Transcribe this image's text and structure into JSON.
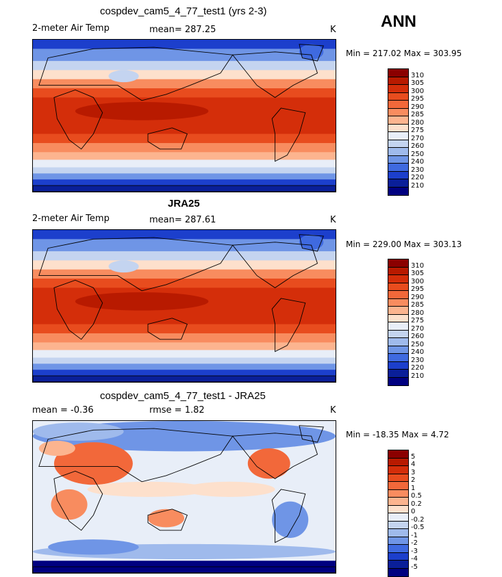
{
  "season": "ANN",
  "panels": [
    {
      "title": "cospdev_cam5_4_77_test1 (yrs 2-3)",
      "left_text": "2-meter Air Temp",
      "center_text": "mean= 287.25",
      "units": "K",
      "minmax": "Min = 217.02 Max = 303.95",
      "field": "abs"
    },
    {
      "title": "JRA25",
      "left_text": "2-meter Air Temp",
      "center_text": "mean= 287.61",
      "units": "K",
      "minmax": "Min = 229.00 Max = 303.13",
      "field": "abs"
    },
    {
      "title": "cospdev_cam5_4_77_test1 - JRA25",
      "left_text": "mean =   -0.36",
      "center_text": "rmse =    1.82",
      "units": "K",
      "minmax": "Min = -18.35 Max =   4.72",
      "field": "diff"
    }
  ],
  "colorbars": {
    "abs": {
      "labels": [
        "310",
        "305",
        "300",
        "295",
        "290",
        "285",
        "280",
        "275",
        "270",
        "260",
        "250",
        "240",
        "230",
        "220",
        "210"
      ],
      "colors": [
        "#8b0000",
        "#b81a00",
        "#d42e0a",
        "#e84c1e",
        "#f2683a",
        "#f88c5f",
        "#fcb48f",
        "#fde0cc",
        "#e8eef8",
        "#c4d4f0",
        "#9fbaec",
        "#6f95e6",
        "#3f6ae0",
        "#1c3fcc",
        "#0a1f99",
        "#000080"
      ]
    },
    "diff": {
      "labels": [
        "5",
        "4",
        "3",
        "2",
        "1",
        "0.5",
        "0.2",
        "0",
        "-0.2",
        "-0.5",
        "-1",
        "-2",
        "-3",
        "-4",
        "-5"
      ],
      "colors": [
        "#8b0000",
        "#b81a00",
        "#d42e0a",
        "#e84c1e",
        "#f2683a",
        "#f88c5f",
        "#fcb48f",
        "#fde0cc",
        "#e8eef8",
        "#c4d4f0",
        "#9fbaec",
        "#6f95e6",
        "#3f6ae0",
        "#1c3fcc",
        "#0a1f99",
        "#000080"
      ]
    }
  }
}
